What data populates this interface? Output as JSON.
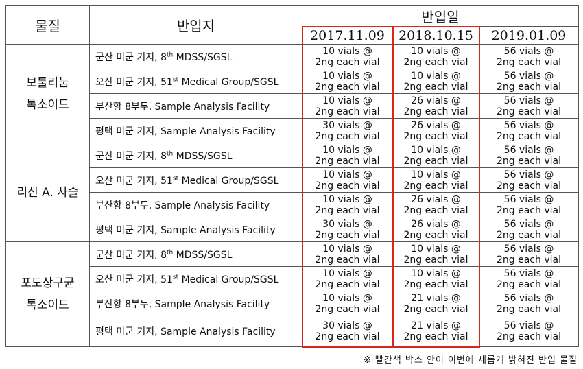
{
  "header": {
    "material": "물질",
    "site": "반입지",
    "date_group": "반입일",
    "dates": [
      "2017.11.09",
      "2018.10.15",
      "2019.01.09"
    ]
  },
  "groups": [
    {
      "material": [
        "보툴리눔",
        "톡소이드"
      ],
      "rows": [
        {
          "site": [
            "군산 미군 기지, 8",
            "th",
            " MDSS/SGSL"
          ],
          "cells": [
            [
              "10 vials @",
              "2ng each vial"
            ],
            [
              "10 vials @",
              "2ng each vial"
            ],
            [
              "56 vials @",
              "2ng each vial"
            ]
          ]
        },
        {
          "site": [
            "오산 미군 기지, 51",
            "st",
            " Medical Group/SGSL"
          ],
          "cells": [
            [
              "10 vials @",
              "2ng each vial"
            ],
            [
              "10 vials @",
              "2ng each vial"
            ],
            [
              "56 vials @",
              "2ng each vial"
            ]
          ]
        },
        {
          "site": [
            "부산항 8부두, Sample Analysis Facility"
          ],
          "cells": [
            [
              "10 vials @",
              "2ng each vial"
            ],
            [
              "26 vials @",
              "2ng each vial"
            ],
            [
              "56 vials @",
              "2ng each vial"
            ]
          ]
        },
        {
          "site": [
            "평택 미군 기지, Sample Analysis Facility"
          ],
          "cells": [
            [
              "30 vials @",
              "2ng each vial"
            ],
            [
              "26 vials @",
              "2ng each vial"
            ],
            [
              "56 vials @",
              "2ng each vial"
            ]
          ]
        }
      ]
    },
    {
      "material": [
        "리신 A. 사슬"
      ],
      "rows": [
        {
          "site": [
            "군산 미군 기지, 8",
            "th",
            " MDSS/SGSL"
          ],
          "cells": [
            [
              "10 vials @",
              "2ng each vial"
            ],
            [
              "10 vials @",
              "2ng each vial"
            ],
            [
              "56 vials @",
              "2ng each vial"
            ]
          ]
        },
        {
          "site": [
            "오산 미군 기지, 51",
            "st",
            " Medical Group/SGSL"
          ],
          "cells": [
            [
              "10 vials @",
              "2ng each vial"
            ],
            [
              "10 vials @",
              "2ng each vial"
            ],
            [
              "56 vials @",
              "2ng each vial"
            ]
          ]
        },
        {
          "site": [
            "부산항 8부두, Sample Analysis Facility"
          ],
          "cells": [
            [
              "10 vials @",
              "2ng each vial"
            ],
            [
              "26 vials @",
              "2ng each vial"
            ],
            [
              "56 vials @",
              "2ng each vial"
            ]
          ]
        },
        {
          "site": [
            "평택 미군 기지, Sample Analysis Facility"
          ],
          "cells": [
            [
              "30 vials @",
              "2ng each vial"
            ],
            [
              "26 vials @",
              "2ng each vial"
            ],
            [
              "56 vials @",
              "2ng each vial"
            ]
          ]
        }
      ]
    },
    {
      "material": [
        "포도상구균",
        "톡소이드"
      ],
      "rows": [
        {
          "site": [
            "군산 미군 기지, 8",
            "th",
            " MDSS/SGSL"
          ],
          "cells": [
            [
              "10 vials @",
              "2ng each vial"
            ],
            [
              "10 vials @",
              "2ng each vial"
            ],
            [
              "56 vials @",
              "2ng each vial"
            ]
          ]
        },
        {
          "site": [
            "오산 미군 기지, 51",
            "st",
            " Medical Group/SGSL"
          ],
          "cells": [
            [
              "10 vials @",
              "2ng each vial"
            ],
            [
              "10 vials @",
              "2ng each vial"
            ],
            [
              "56 vials @",
              "2ng each vial"
            ]
          ]
        },
        {
          "site": [
            "부산항 8부두, Sample Analysis Facility"
          ],
          "cells": [
            [
              "10 vials @",
              "2ng each vial"
            ],
            [
              "21 vials @",
              "2ng each vial"
            ],
            [
              "56 vials @",
              "2ng each vial"
            ]
          ]
        },
        {
          "site": [
            "평택 미군 기지, Sample Analysis Facility"
          ],
          "cells": [
            [
              "30 vials @",
              "2ng each vial"
            ],
            [
              "21 vials @",
              "2ng each vial"
            ],
            [
              "56 vials @",
              "2ng each vial"
            ]
          ]
        }
      ]
    }
  ],
  "footnote": "※ 빨간색 박스 안이 이번에 새롭게 밝혀진 반입 물질"
}
